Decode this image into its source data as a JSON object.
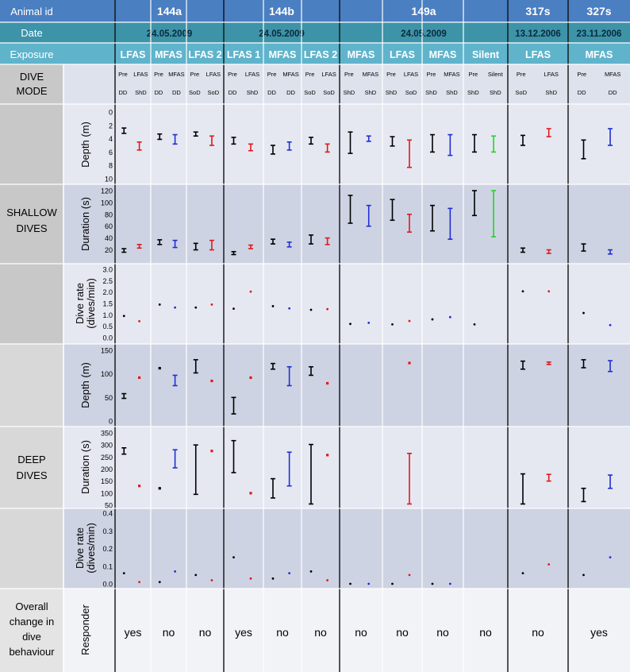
{
  "header": {
    "animal_label": "Animal id",
    "date_label": "Date",
    "exposure_label": "Exposure",
    "dive_mode_label": "DIVE MODE",
    "animals": [
      {
        "id": "144a",
        "date": "24.05.2009"
      },
      {
        "id": "144b",
        "date": "24.05.2009"
      },
      {
        "id": "149a",
        "date": "24.05.2009"
      },
      {
        "id": "317s",
        "date": "13.12.2006"
      },
      {
        "id": "327s",
        "date": "23.11.2006"
      }
    ]
  },
  "sections": {
    "shallow": "SHALLOW DIVES",
    "deep": "DEEP DIVES",
    "overall": "Overall change in dive behaviour"
  },
  "row_labels": {
    "depth": "Depth (m)",
    "duration": "Duration (s)",
    "rate": "Dive rate (dives/min)",
    "responder": "Responder"
  },
  "colors": {
    "pre": "#000000",
    "lfas": "#e0191c",
    "mfas": "#1f2fd0",
    "silent": "#22d422",
    "header_dark": "#4a7fc1",
    "header_teal": "#5fb4cc"
  },
  "chart_data": {
    "type": "scatter",
    "description": "Error-bar panel grid (mean with range)",
    "axes": {
      "shallow_depth": {
        "ylabel": "Depth (m)",
        "ylim": [
          10,
          0
        ],
        "ticks": [
          0,
          2,
          4,
          6,
          8,
          10
        ],
        "inverted": true
      },
      "shallow_duration": {
        "ylabel": "Duration (s)",
        "ylim": [
          10,
          120
        ],
        "ticks": [
          20,
          40,
          60,
          80,
          100,
          120
        ]
      },
      "shallow_rate": {
        "ylabel": "Dive rate (dives/min)",
        "ylim": [
          0,
          3.0
        ],
        "ticks": [
          0.0,
          0.5,
          1.0,
          1.5,
          2.0,
          2.5,
          3.0
        ]
      },
      "deep_depth": {
        "ylabel": "Depth (m)",
        "ylim": [
          0,
          150
        ],
        "ticks": [
          0,
          50,
          100,
          150
        ]
      },
      "deep_duration": {
        "ylabel": "Duration (s)",
        "ylim": [
          50,
          350
        ],
        "ticks": [
          50,
          100,
          150,
          200,
          250,
          300,
          350
        ]
      },
      "deep_rate": {
        "ylabel": "Dive rate (dives/min)",
        "ylim": [
          0,
          0.4
        ],
        "ticks": [
          0.0,
          0.1,
          0.2,
          0.3,
          0.4
        ]
      }
    },
    "trials": [
      {
        "animal": "144a",
        "exposure": "LFAS",
        "pre_label": "Pre",
        "exp_label": "LFAS",
        "pre_mode": "DD",
        "exp_mode": "ShD",
        "color": "lfas",
        "shallow_depth": {
          "pre": [
            2.4,
            2.8,
            3.2
          ],
          "exp": [
            4.5,
            5.1,
            5.7
          ]
        },
        "shallow_duration": {
          "pre": [
            16,
            19,
            22
          ],
          "exp": [
            23,
            26,
            29
          ]
        },
        "shallow_rate": {
          "pre": 0.95,
          "exp": 0.72
        },
        "deep_depth": {
          "pre": [
            48,
            53,
            58
          ],
          "exp": [
            92,
            92,
            92
          ]
        },
        "deep_duration": {
          "pre": [
            262,
            275,
            288
          ],
          "exp": [
            130,
            130,
            130
          ]
        },
        "deep_rate": {
          "pre": 0.06,
          "exp": 0.01
        },
        "responder": "yes"
      },
      {
        "animal": "144a",
        "exposure": "MFAS",
        "pre_label": "Pre",
        "exp_label": "MFAS",
        "pre_mode": "DD",
        "exp_mode": "DD",
        "color": "mfas",
        "shallow_depth": {
          "pre": [
            3.3,
            3.7,
            4.1
          ],
          "exp": [
            3.4,
            4.1,
            4.8
          ]
        },
        "shallow_duration": {
          "pre": [
            29,
            33,
            37
          ],
          "exp": [
            24,
            30,
            36
          ]
        },
        "shallow_rate": {
          "pre": 1.45,
          "exp": 1.32
        },
        "deep_depth": {
          "pre": [
            112,
            112,
            112
          ],
          "exp": [
            75,
            85,
            97
          ]
        },
        "deep_duration": {
          "pre": [
            120,
            120,
            120
          ],
          "exp": [
            205,
            240,
            280
          ]
        },
        "deep_rate": {
          "pre": 0.01,
          "exp": 0.07
        },
        "responder": "no"
      },
      {
        "animal": "144a",
        "exposure": "LFAS 2",
        "pre_label": "Pre",
        "exp_label": "LFAS",
        "pre_mode": "SoD",
        "exp_mode": "SoD",
        "color": "lfas",
        "shallow_depth": {
          "pre": [
            3.0,
            3.3,
            3.6
          ],
          "exp": [
            3.6,
            4.3,
            5.0
          ]
        },
        "shallow_duration": {
          "pre": [
            20,
            25,
            31
          ],
          "exp": [
            20,
            27,
            36
          ]
        },
        "shallow_rate": {
          "pre": 1.32,
          "exp": 1.45
        },
        "deep_depth": {
          "pre": [
            102,
            115,
            130
          ],
          "exp": [
            85,
            85,
            85
          ]
        },
        "deep_duration": {
          "pre": [
            95,
            200,
            300
          ],
          "exp": [
            275,
            275,
            275
          ]
        },
        "deep_rate": {
          "pre": 0.05,
          "exp": 0.02
        },
        "responder": "no"
      },
      {
        "animal": "144b",
        "exposure": "LFAS 1",
        "pre_label": "Pre",
        "exp_label": "LFAS",
        "pre_mode": "DD",
        "exp_mode": "ShD",
        "color": "lfas",
        "shallow_depth": {
          "pre": [
            3.8,
            4.3,
            4.8
          ],
          "exp": [
            4.8,
            5.3,
            5.8
          ]
        },
        "shallow_duration": {
          "pre": [
            12,
            14,
            17
          ],
          "exp": [
            22,
            25,
            28
          ]
        },
        "shallow_rate": {
          "pre": 1.27,
          "exp": 2.02
        },
        "deep_depth": {
          "pre": [
            15,
            32,
            50
          ],
          "exp": [
            92,
            92,
            92
          ]
        },
        "deep_duration": {
          "pre": [
            185,
            250,
            318
          ],
          "exp": [
            100,
            100,
            100
          ]
        },
        "deep_rate": {
          "pre": 0.15,
          "exp": 0.03
        },
        "responder": "yes"
      },
      {
        "animal": "144b",
        "exposure": "MFAS",
        "pre_label": "Pre",
        "exp_label": "MFAS",
        "pre_mode": "DD",
        "exp_mode": "DD",
        "color": "mfas",
        "shallow_depth": {
          "pre": [
            5.0,
            5.5,
            6.3
          ],
          "exp": [
            4.5,
            5.1,
            5.7
          ]
        },
        "shallow_duration": {
          "pre": [
            30,
            34,
            38
          ],
          "exp": [
            25,
            29,
            33
          ]
        },
        "shallow_rate": {
          "pre": 1.38,
          "exp": 1.28
        },
        "deep_depth": {
          "pre": [
            110,
            116,
            122
          ],
          "exp": [
            75,
            95,
            115
          ]
        },
        "deep_duration": {
          "pre": [
            80,
            120,
            160
          ],
          "exp": [
            130,
            195,
            270
          ]
        },
        "deep_rate": {
          "pre": 0.03,
          "exp": 0.06
        },
        "responder": "no"
      },
      {
        "animal": "144b",
        "exposure": "LFAS 2",
        "pre_label": "Pre",
        "exp_label": "LFAS",
        "pre_mode": "SoD",
        "exp_mode": "SoD",
        "color": "lfas",
        "shallow_depth": {
          "pre": [
            3.8,
            4.3,
            4.8
          ],
          "exp": [
            4.8,
            5.4,
            6.0
          ]
        },
        "shallow_duration": {
          "pre": [
            30,
            37,
            45
          ],
          "exp": [
            29,
            34,
            40
          ]
        },
        "shallow_rate": {
          "pre": 1.22,
          "exp": 1.25
        },
        "deep_depth": {
          "pre": [
            97,
            106,
            115
          ],
          "exp": [
            80,
            80,
            80
          ]
        },
        "deep_duration": {
          "pre": [
            55,
            170,
            302
          ],
          "exp": [
            258,
            258,
            258
          ]
        },
        "deep_rate": {
          "pre": 0.07,
          "exp": 0.02
        },
        "responder": "no"
      },
      {
        "animal": "149a",
        "exposure": "MFAS",
        "pre_label": "Pre",
        "exp_label": "MFAS",
        "pre_mode": "ShD",
        "exp_mode": "ShD",
        "color": "mfas",
        "shallow_depth": {
          "pre": [
            3.0,
            4.5,
            6.2
          ],
          "exp": [
            3.6,
            4.0,
            4.4
          ]
        },
        "shallow_duration": {
          "pre": [
            65,
            88,
            112
          ],
          "exp": [
            60,
            73,
            95
          ]
        },
        "shallow_rate": {
          "pre": 0.6,
          "exp": 0.65
        },
        "deep_depth": null,
        "deep_duration": null,
        "deep_rate": {
          "pre": 0.0,
          "exp": 0.0
        },
        "responder": "no"
      },
      {
        "animal": "149a",
        "exposure": "LFAS",
        "pre_label": "Pre",
        "exp_label": "LFAS",
        "pre_mode": "ShD",
        "exp_mode": "SoD",
        "color": "lfas",
        "shallow_depth": {
          "pre": [
            3.7,
            4.4,
            5.1
          ],
          "exp": [
            4.2,
            6.0,
            8.3
          ]
        },
        "shallow_duration": {
          "pre": [
            70,
            88,
            105
          ],
          "exp": [
            50,
            65,
            80
          ]
        },
        "shallow_rate": {
          "pre": 0.58,
          "exp": 0.73
        },
        "deep_depth": {
          "pre": null,
          "exp": [
            123,
            123,
            123
          ]
        },
        "deep_duration": {
          "pre": null,
          "exp": [
            55,
            140,
            265
          ]
        },
        "deep_rate": {
          "pre": 0.0,
          "exp": 0.05
        },
        "responder": "no"
      },
      {
        "animal": "149a",
        "exposure": "MFAS",
        "pre_label": "Pre",
        "exp_label": "MFAS",
        "pre_mode": "ShD",
        "exp_mode": "ShD",
        "color": "mfas",
        "shallow_depth": {
          "pre": [
            3.4,
            4.7,
            6.0
          ],
          "exp": [
            3.4,
            5.0,
            6.5
          ]
        },
        "shallow_duration": {
          "pre": [
            52,
            72,
            95
          ],
          "exp": [
            38,
            62,
            90
          ]
        },
        "shallow_rate": {
          "pre": 0.8,
          "exp": 0.9
        },
        "deep_depth": null,
        "deep_duration": null,
        "deep_rate": {
          "pre": 0.0,
          "exp": 0.0
        },
        "responder": "no"
      },
      {
        "animal": "149a",
        "exposure": "Silent",
        "pre_label": "Pre",
        "exp_label": "Silent",
        "pre_mode": "ShD",
        "exp_mode": "ShD",
        "color": "silent",
        "shallow_depth": {
          "pre": [
            3.4,
            4.7,
            6.0
          ],
          "exp": [
            3.6,
            4.8,
            6.0
          ]
        },
        "shallow_duration": {
          "pre": [
            78,
            100,
            120
          ],
          "exp": [
            42,
            80,
            120
          ]
        },
        "shallow_rate": {
          "pre": 0.58,
          "exp": null
        },
        "deep_depth": null,
        "deep_duration": null,
        "deep_rate": null,
        "responder": "no"
      },
      {
        "animal": "317s",
        "exposure": "LFAS",
        "pre_label": "Pre",
        "exp_label": "LFAS",
        "pre_mode": "SoD",
        "exp_mode": "ShD",
        "color": "lfas",
        "shallow_depth": {
          "pre": [
            3.5,
            4.3,
            5.0
          ],
          "exp": [
            2.5,
            3.1,
            3.7
          ]
        },
        "shallow_duration": {
          "pre": [
            16,
            19,
            23
          ],
          "exp": [
            14,
            17,
            20
          ]
        },
        "shallow_rate": {
          "pre": 2.03,
          "exp": 2.03
        },
        "deep_depth": {
          "pre": [
            110,
            118,
            127
          ],
          "exp": [
            120,
            122,
            125
          ]
        },
        "deep_duration": {
          "pre": [
            55,
            120,
            180
          ],
          "exp": [
            150,
            163,
            178
          ]
        },
        "deep_rate": {
          "pre": 0.06,
          "exp": 0.11
        },
        "responder": "no"
      },
      {
        "animal": "327s",
        "exposure": "MFAS",
        "pre_label": "Pre",
        "exp_label": "MFAS",
        "pre_mode": "DD",
        "exp_mode": "DD",
        "color": "mfas",
        "shallow_depth": {
          "pre": [
            4.2,
            5.5,
            7.0
          ],
          "exp": [
            2.5,
            3.7,
            5.0
          ]
        },
        "shallow_duration": {
          "pre": [
            18,
            24,
            30
          ],
          "exp": [
            13,
            16,
            20
          ]
        },
        "shallow_rate": {
          "pre": 1.08,
          "exp": 0.55
        },
        "deep_depth": {
          "pre": [
            113,
            121,
            130
          ],
          "exp": [
            105,
            116,
            128
          ]
        },
        "deep_duration": {
          "pre": [
            65,
            90,
            120
          ],
          "exp": [
            120,
            145,
            175
          ]
        },
        "deep_rate": {
          "pre": 0.05,
          "exp": 0.15
        },
        "responder": "yes"
      }
    ]
  }
}
